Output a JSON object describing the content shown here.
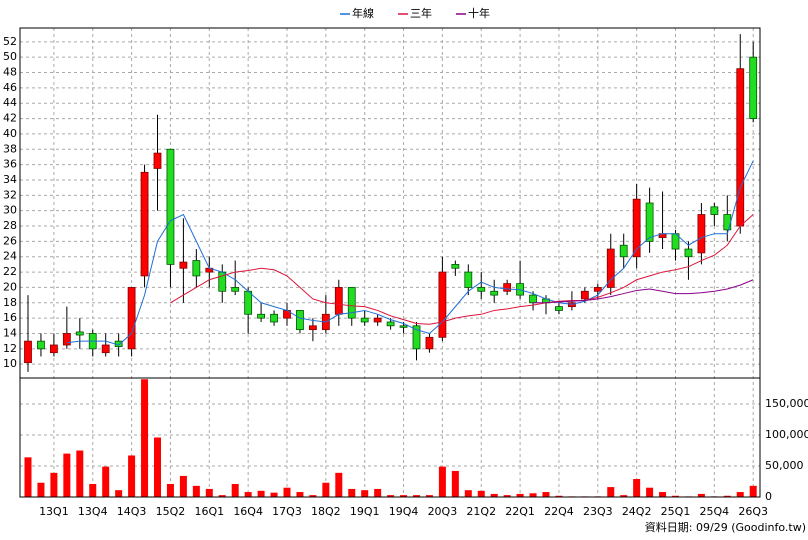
{
  "chart_data": [
    {
      "type": "candlestick",
      "categories": [
        null,
        null,
        "13Q1",
        null,
        null,
        "13Q4",
        null,
        null,
        "14Q3",
        null,
        null,
        "15Q2",
        null,
        null,
        "16Q1",
        null,
        null,
        "16Q4",
        null,
        null,
        "17Q3",
        null,
        null,
        "18Q2",
        null,
        null,
        "19Q1",
        null,
        null,
        "19Q4",
        null,
        null,
        "20Q3",
        null,
        null,
        "21Q2",
        null,
        null,
        "22Q1",
        null,
        null,
        "22Q4",
        null,
        null,
        "23Q3",
        null,
        null,
        "24Q2",
        null,
        null,
        "25Q1",
        null,
        null,
        "25Q4",
        null,
        null,
        "26Q3"
      ],
      "open": [
        10.2,
        13,
        11.5,
        12.5,
        14.2,
        14,
        11.5,
        13,
        12,
        21.5,
        35.5,
        38,
        22.5,
        23.5,
        22,
        22,
        20,
        19.5,
        16.5,
        16.5,
        16,
        17,
        14.5,
        14.5,
        16.5,
        20,
        16,
        15.5,
        15.5,
        15,
        15,
        12,
        13.5,
        23,
        22,
        20,
        19.5,
        19.5,
        20.5,
        19,
        18.5,
        17.5,
        17.5,
        18.5,
        19.5,
        20,
        25.5,
        24,
        31,
        26.5,
        27,
        25,
        24.5,
        30.5,
        29.5,
        28,
        50
      ],
      "high": [
        19,
        14,
        14,
        17.5,
        16,
        14.5,
        14,
        14,
        20,
        36,
        42.5,
        38,
        29,
        25,
        24,
        23,
        23.5,
        20,
        18,
        17,
        18,
        17,
        16,
        19,
        21,
        20,
        17,
        16.5,
        16,
        15.5,
        15.5,
        14,
        24,
        23.5,
        23,
        22,
        21,
        21,
        23.5,
        19.5,
        19,
        18,
        19.5,
        20,
        20.5,
        27,
        27,
        33.5,
        33,
        32.5,
        27.5,
        26,
        31,
        31,
        32,
        53,
        52
      ],
      "low": [
        9,
        11,
        11,
        12,
        12,
        11,
        11,
        11,
        11,
        20,
        30,
        20,
        18,
        20,
        20,
        18,
        19,
        14,
        15.5,
        15,
        15,
        14,
        13,
        14,
        15,
        15,
        15,
        15,
        14.5,
        14,
        10.5,
        11.5,
        13,
        21.5,
        19,
        18.5,
        18,
        19,
        18.5,
        17,
        16.5,
        16.5,
        17,
        18,
        18.5,
        19,
        22.5,
        22.5,
        24.5,
        25,
        23.5,
        21,
        23,
        28,
        26,
        27,
        41.5
      ],
      "close": [
        13,
        12,
        12.5,
        14,
        13.8,
        12,
        12.5,
        12.3,
        20,
        35,
        37.5,
        23,
        23.3,
        21.5,
        22.5,
        19.5,
        19.5,
        16.5,
        16,
        15.5,
        17,
        14.5,
        15,
        16.5,
        20,
        16,
        15.5,
        16,
        15,
        14.8,
        12,
        13.5,
        22,
        22.5,
        20,
        19.5,
        19,
        20.5,
        19,
        18,
        18,
        17,
        18,
        19.5,
        20,
        25,
        24,
        31.5,
        26,
        27,
        25,
        24,
        29.5,
        29.5,
        27.5,
        48.5,
        42
      ],
      "up_color": "#ff0000",
      "down_color": "#22dd22",
      "series": [
        {
          "name": "年線",
          "color": "#1e6fd9",
          "values": [
            null,
            null,
            null,
            12.8,
            13,
            13,
            13,
            12.5,
            14,
            19,
            26,
            28.7,
            29.5,
            26,
            22.5,
            22,
            21,
            19.5,
            18,
            17.5,
            17,
            16,
            15.7,
            15.5,
            16.5,
            16.7,
            17,
            16.5,
            15.8,
            15.3,
            14.5,
            14,
            15.5,
            17.5,
            19.5,
            20.7,
            20,
            19.8,
            19.7,
            19.2,
            18.5,
            18,
            17.8,
            18.2,
            19,
            21,
            22.5,
            25,
            26.5,
            27,
            27,
            25.5,
            26.5,
            27,
            27,
            33,
            36.5
          ]
        },
        {
          "name": "三年",
          "color": "#dc143c",
          "values": [
            null,
            null,
            null,
            null,
            null,
            null,
            null,
            null,
            null,
            null,
            null,
            18,
            19,
            20,
            21,
            21.5,
            22,
            22.2,
            22.5,
            22.3,
            21.5,
            20,
            18.5,
            18,
            17.8,
            17.6,
            17.5,
            17,
            16.3,
            15.8,
            15.3,
            15.2,
            15.5,
            16,
            16.3,
            16.5,
            17,
            17.2,
            17.5,
            17.7,
            18,
            18.2,
            18.3,
            18.3,
            18.7,
            19.3,
            20,
            21,
            21.5,
            22,
            22.3,
            22.7,
            23.5,
            24.2,
            25.5,
            28,
            29.5
          ]
        },
        {
          "name": "十年",
          "color": "#8b008b",
          "values": [
            null,
            null,
            null,
            null,
            null,
            null,
            null,
            null,
            null,
            null,
            null,
            null,
            null,
            null,
            null,
            null,
            null,
            null,
            null,
            null,
            null,
            null,
            null,
            null,
            null,
            null,
            null,
            null,
            null,
            null,
            null,
            null,
            null,
            null,
            null,
            null,
            null,
            null,
            null,
            18,
            18,
            18.1,
            18.2,
            18.3,
            18.5,
            18.8,
            19.2,
            19.6,
            19.8,
            19.5,
            19.2,
            19.2,
            19.3,
            19.5,
            19.8,
            20.3,
            21
          ]
        }
      ],
      "ylim": [
        8.2,
        53.8
      ],
      "yticks": [
        10,
        12,
        14,
        16,
        18,
        20,
        22,
        24,
        26,
        28,
        30,
        32,
        34,
        36,
        38,
        40,
        42,
        44,
        46,
        48,
        50,
        52
      ],
      "grid": true
    },
    {
      "type": "bar",
      "values": [
        64000,
        23000,
        39000,
        70000,
        75000,
        21000,
        49000,
        11000,
        67000,
        190000,
        96000,
        21000,
        34000,
        18000,
        13000,
        3000,
        21000,
        8000,
        10000,
        7000,
        15000,
        8000,
        3000,
        23000,
        39000,
        13000,
        11000,
        13000,
        3000,
        3000,
        3000,
        3000,
        49000,
        42000,
        11000,
        10000,
        5000,
        3000,
        5000,
        6000,
        8000,
        2000,
        1000,
        1000,
        1000,
        16000,
        3000,
        29000,
        15000,
        8000,
        2000,
        1000,
        5000,
        1000,
        2000,
        8000,
        18000
      ],
      "color": "#ff0000",
      "ylim": [
        0,
        192000
      ],
      "yticks": [
        0,
        {
          "value": 50000,
          "label": "50,000"
        },
        {
          "value": 100000,
          "label": "100,000"
        },
        {
          "value": 150000,
          "label": "150,000"
        }
      ],
      "grid": true
    }
  ],
  "footnote": "資料日期: 09/29 (Goodinfo.tw)"
}
